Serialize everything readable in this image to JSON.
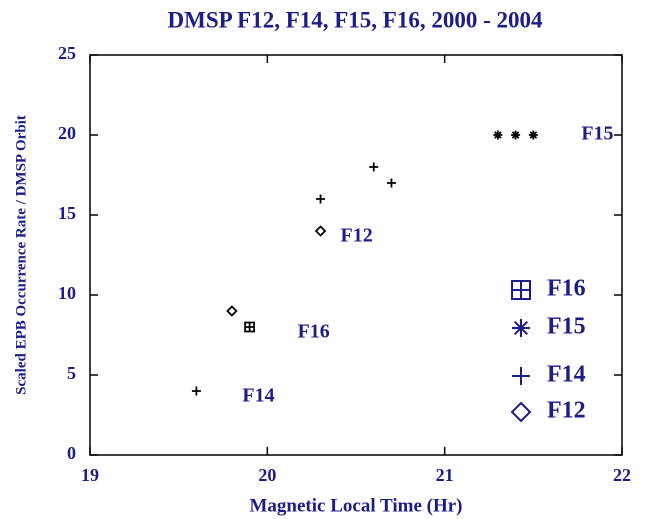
{
  "chart_data": {
    "type": "scatter",
    "title": "DMSP  F12, F14, F15, F16, 2000 - 2004",
    "x_label": "Magnetic Local Time (Hr)",
    "y_label": "Scaled EPB Occurrence Rate / DMSP Orbit",
    "xlim": [
      19,
      22
    ],
    "xticks": [
      19,
      20,
      21,
      22
    ],
    "ylim": [
      0,
      25
    ],
    "yticks": [
      0,
      5,
      10,
      15,
      20,
      25
    ],
    "legend": "lower right",
    "series": [
      {
        "name": "F16",
        "marker": "square",
        "color": "#000000",
        "x": [
          19.9
        ],
        "values": [
          8
        ]
      },
      {
        "name": "F15",
        "marker": "asterisk",
        "color": "#000000",
        "x": [
          21.3,
          21.4,
          21.5
        ],
        "values": [
          20,
          20,
          20
        ]
      },
      {
        "name": "F14",
        "marker": "plus",
        "color": "#000000",
        "x": [
          19.6,
          20.3,
          20.6,
          20.7
        ],
        "values": [
          4,
          16,
          18,
          17
        ]
      },
      {
        "name": "F12",
        "marker": "diamond",
        "color": "#000000",
        "x": [
          19.8,
          20.3
        ],
        "values": [
          9,
          14
        ]
      }
    ]
  }
}
